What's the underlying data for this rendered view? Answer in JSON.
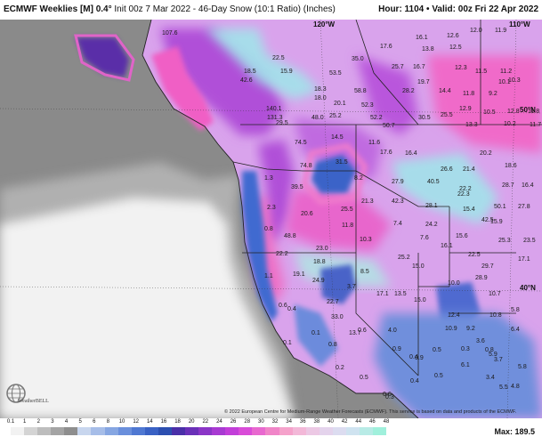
{
  "header": {
    "model": "ECMWF Weeklies [M] 0.4°",
    "init": "Init 00z 7 Mar 2022",
    "product": "46-Day Snow (10:1 Ratio) (Inches)",
    "hour": "Hour: 1104",
    "valid": "Valid: 00z Fri 22 Apr 2022"
  },
  "map": {
    "lat_lon_labels": [
      "120°W",
      "110°W",
      "50°N",
      "40°N"
    ],
    "values": [
      "107.6",
      "22.5",
      "35.0",
      "17.6",
      "16.1",
      "12.6",
      "12.0",
      "11.9",
      "42.6",
      "18.5",
      "15.9",
      "53.5",
      "25.7",
      "16.7",
      "13.8",
      "12.5",
      "12.3",
      "11.5",
      "11.2",
      "18.3",
      "58.8",
      "19.7",
      "11.8",
      "9.2",
      "10.1",
      "10.3",
      "18.0",
      "20.1",
      "52.3",
      "28.2",
      "14.4",
      "12.9",
      "10.5",
      "12.8",
      "11.8",
      "140.1",
      "48.0",
      "25.2",
      "52.2",
      "50.7",
      "30.5",
      "25.5",
      "13.3",
      "10.2",
      "11.7",
      "131.3",
      "29.5",
      "74.5",
      "14.5",
      "11.6",
      "17.6",
      "16.4",
      "20.2",
      "18.6",
      "74.8",
      "31.5",
      "26.6",
      "21.4",
      "28.7",
      "16.4",
      "39.5",
      "8.2",
      "27.9",
      "40.5",
      "22.2",
      "50.1",
      "27.8",
      "22.3",
      "20.6",
      "21.3",
      "42.3",
      "28.1",
      "15.4",
      "42.5",
      "15.9",
      "25.5",
      "11.8",
      "10.3",
      "7.4",
      "24.2",
      "15.6",
      "25.3",
      "23.5",
      "48.8",
      "7.6",
      "16.1",
      "22.5",
      "17.1",
      "22.2",
      "23.0",
      "18.8",
      "25.2",
      "15.0",
      "29.7",
      "19.1",
      "24.9",
      "8.5",
      "10.0",
      "28.9",
      "10.7",
      "3.7",
      "17.1",
      "13.5",
      "15.0",
      "10.8",
      "22.7",
      "33.0",
      "12.4",
      "5.8",
      "6.4",
      "13.7",
      "4.0",
      "10.9",
      "9.2",
      "3.6",
      "0.1",
      "0.8",
      "0.6",
      "0.3",
      "0.5",
      "0.8",
      "0.9",
      "0.4",
      "6.1",
      "3.4",
      "4.8",
      "5.5",
      "5.8",
      "0.2",
      "0.5",
      "0.4",
      "0.9",
      "0.6",
      "0.3",
      "0.5",
      "3.7",
      "5.9",
      "1.3",
      "2.3",
      "0.8",
      "1.1",
      "0.6",
      "0.4",
      "0.1"
    ]
  },
  "credit": "© 2022 European Centre for Medium-Range Weather Forecasts (ECMWF). This service is based on data and products of the ECMWF.",
  "logo": "WeatherBELL",
  "legend": {
    "ticks": [
      "0.1",
      "1",
      "2",
      "3",
      "4",
      "5",
      "6",
      "8",
      "10",
      "12",
      "14",
      "16",
      "18",
      "20",
      "22",
      "24",
      "26",
      "28",
      "30",
      "32",
      "34",
      "36",
      "38",
      "40",
      "42",
      "44",
      "46",
      "48"
    ],
    "colors": [
      "#f2f2f2",
      "#d4d4d4",
      "#bdbdbd",
      "#a4a4a4",
      "#8e8e8e",
      "#c8d6ee",
      "#a6bde8",
      "#86a6e2",
      "#6a8fdc",
      "#4f78d2",
      "#3961c4",
      "#2c4fb0",
      "#4a2fa8",
      "#6a30b8",
      "#8b35c7",
      "#a83ad2",
      "#c23ed9",
      "#d94cd8",
      "#e868cf",
      "#f085c8",
      "#f5a2cb",
      "#f3b8d8",
      "#ecc8e4",
      "#e4d3ec",
      "#dcdcf0",
      "#cfe3f0",
      "#b8ebe6",
      "#a0f0dc"
    ],
    "max": "Max: 189.5"
  }
}
